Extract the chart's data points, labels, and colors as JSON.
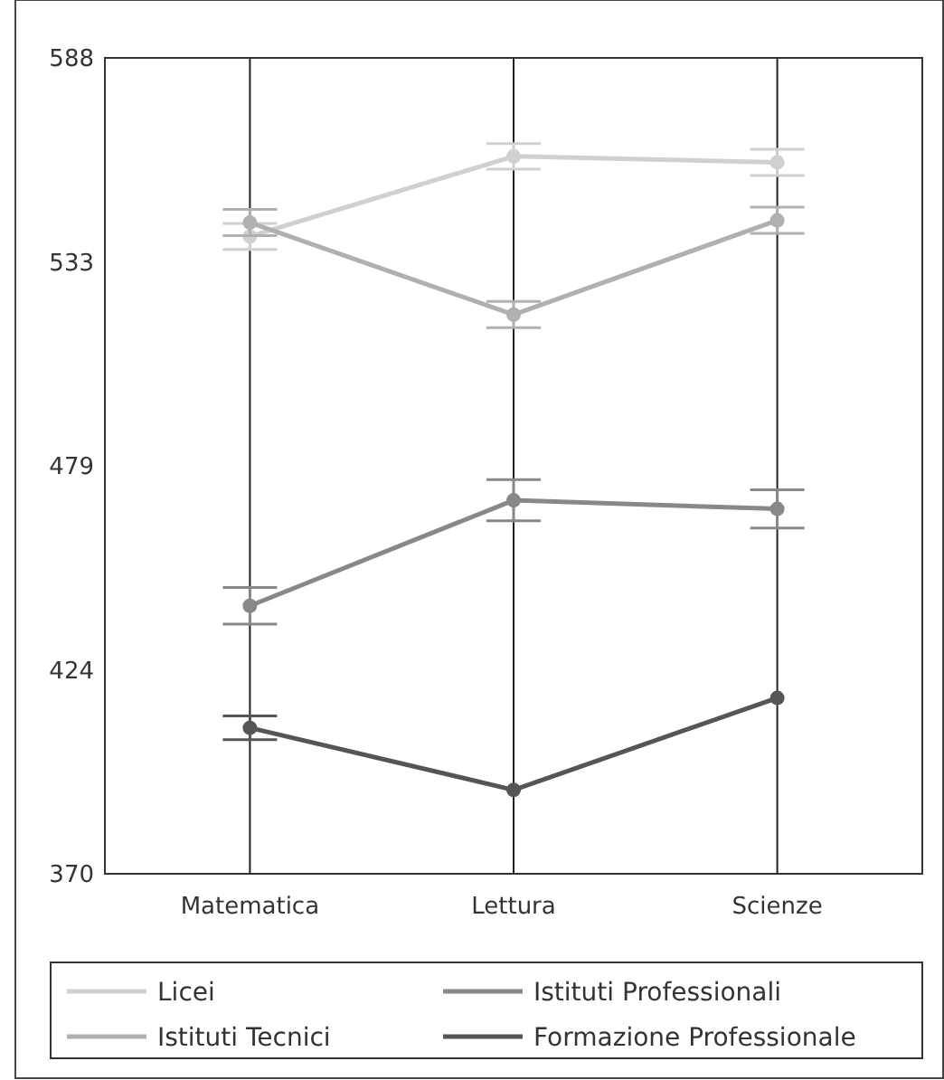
{
  "chart_data": {
    "type": "line",
    "categories": [
      "Matematica",
      "Lettura",
      "Scienze"
    ],
    "series": [
      {
        "name": "Licei",
        "color": "#d0d0d0",
        "values": [
          540.3,
          561.7,
          560.1
        ],
        "errors": [
          3.5,
          3.4,
          3.5
        ]
      },
      {
        "name": "Istituti Tecnici",
        "color": "#b0b0b0",
        "values": [
          544,
          519.4,
          544.6
        ],
        "errors": [
          3.5,
          3.5,
          3.5
        ]
      },
      {
        "name": "Istituti Professionali",
        "color": "#888888",
        "values": [
          441.6,
          469.8,
          467.5
        ],
        "errors": [
          4.9,
          5.5,
          5.1
        ]
      },
      {
        "name": "Formazione Professionale",
        "color": "#555555",
        "values": [
          409,
          392.4,
          417
        ],
        "errors": [
          3.2,
          null,
          null
        ]
      }
    ],
    "ylim": [
      370,
      588
    ],
    "yticks": [
      370,
      {
        "value": 424.5,
        "label": "424"
      },
      479,
      {
        "value": 533.5,
        "label": "533"
      },
      588
    ],
    "grid": "x",
    "legend": "bottom",
    "marker": "circle",
    "line_style": "solid"
  }
}
